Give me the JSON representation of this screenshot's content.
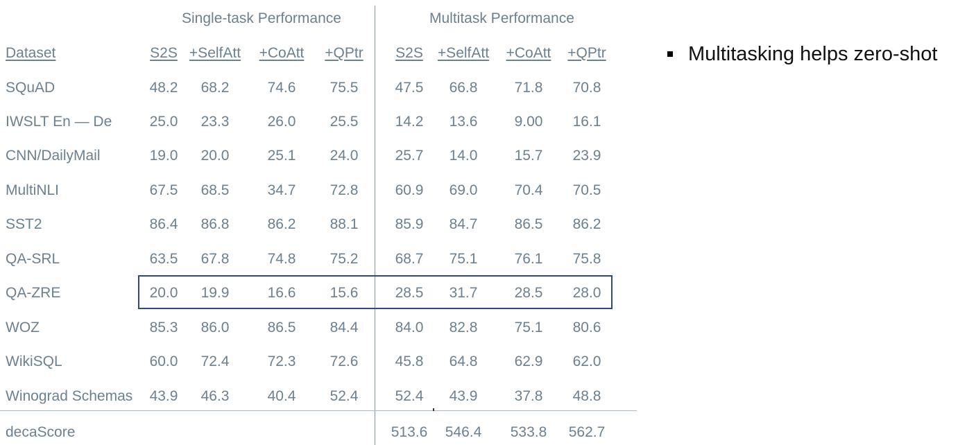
{
  "group_titles": {
    "single": "Single-task Performance",
    "multi": "Multitask Performance"
  },
  "columns": {
    "dataset": "Dataset",
    "single": [
      "S2S",
      "+SelfAtt",
      "+CoAtt",
      "+QPtr"
    ],
    "multi": [
      "S2S",
      "+SelfAtt",
      "+CoAtt",
      "+QPtr"
    ]
  },
  "rows": [
    {
      "dataset": "SQuAD",
      "single": [
        "48.2",
        "68.2",
        "74.6",
        "75.5"
      ],
      "multi": [
        "47.5",
        "66.8",
        "71.8",
        "70.8"
      ]
    },
    {
      "dataset": "IWSLT En — De",
      "single": [
        "25.0",
        "23.3",
        "26.0",
        "25.5"
      ],
      "multi": [
        "14.2",
        "13.6",
        "9.00",
        "16.1"
      ]
    },
    {
      "dataset": "CNN/DailyMail",
      "single": [
        "19.0",
        "20.0",
        "25.1",
        "24.0"
      ],
      "multi": [
        "25.7",
        "14.0",
        "15.7",
        "23.9"
      ]
    },
    {
      "dataset": "MultiNLI",
      "single": [
        "67.5",
        "68.5",
        "34.7",
        "72.8"
      ],
      "multi": [
        "60.9",
        "69.0",
        "70.4",
        "70.5"
      ]
    },
    {
      "dataset": "SST2",
      "single": [
        "86.4",
        "86.8",
        "86.2",
        "88.1"
      ],
      "multi": [
        "85.9",
        "84.7",
        "86.5",
        "86.2"
      ]
    },
    {
      "dataset": "QA-SRL",
      "single": [
        "63.5",
        "67.8",
        "74.8",
        "75.2"
      ],
      "multi": [
        "68.7",
        "75.1",
        "76.1",
        "75.8"
      ]
    },
    {
      "dataset": "QA-ZRE",
      "single": [
        "20.0",
        "19.9",
        "16.6",
        "15.6"
      ],
      "multi": [
        "28.5",
        "31.7",
        "28.5",
        "28.0"
      ],
      "highlighted": true
    },
    {
      "dataset": "WOZ",
      "single": [
        "85.3",
        "86.0",
        "86.5",
        "84.4"
      ],
      "multi": [
        "84.0",
        "82.8",
        "75.1",
        "80.6"
      ]
    },
    {
      "dataset": "WikiSQL",
      "single": [
        "60.0",
        "72.4",
        "72.3",
        "72.6"
      ],
      "multi": [
        "45.8",
        "64.8",
        "62.9",
        "62.0"
      ]
    },
    {
      "dataset": "Winograd Schemas",
      "single": [
        "43.9",
        "46.3",
        "40.4",
        "52.4"
      ],
      "multi": [
        "52.4",
        "43.9",
        "37.8",
        "48.8"
      ]
    }
  ],
  "total": {
    "label": "decaScore",
    "multi": [
      "513.6",
      "546.4",
      "533.8",
      "562.7"
    ]
  },
  "bullet": "Multitasking helps zero-shot",
  "colors": {
    "text": "#6b8091",
    "highlight_border": "#2d4a7a",
    "divider": "#7f93ad"
  }
}
